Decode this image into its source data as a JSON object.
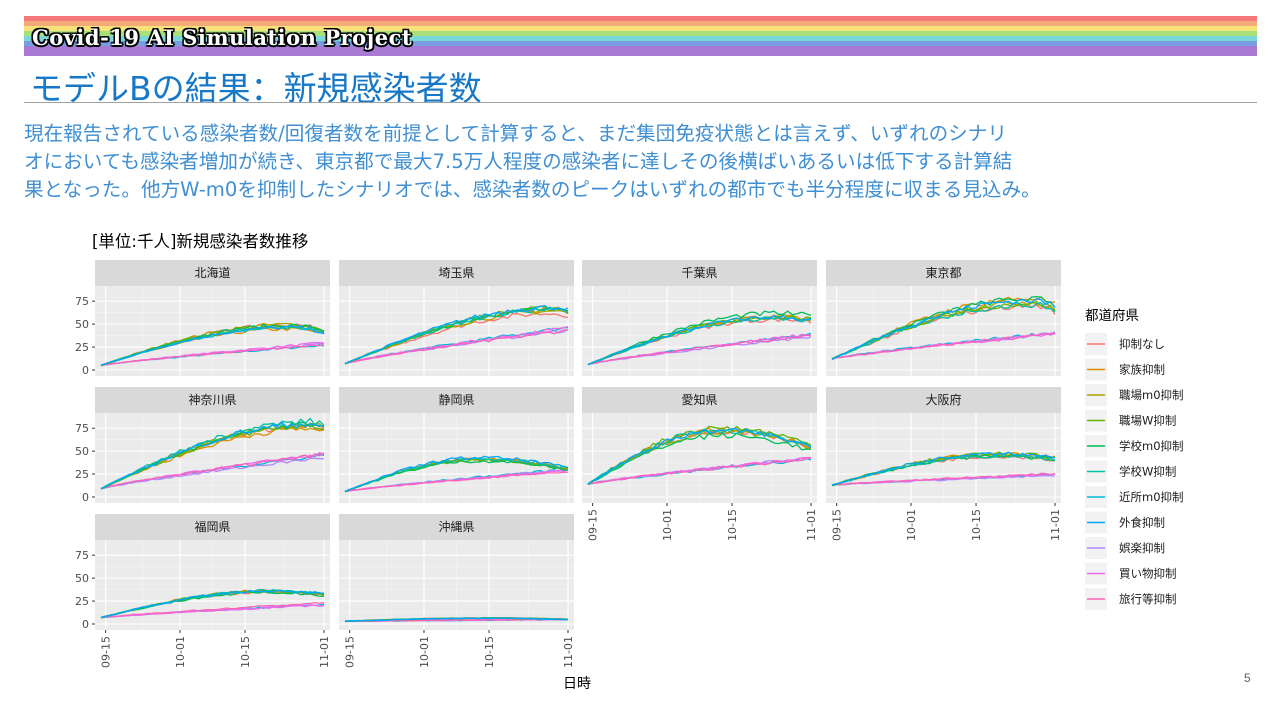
{
  "header": {
    "project_title": "Covid-19 AI Simulation Project",
    "rainbow_colors": [
      "#f4777a",
      "#f5aa7a",
      "#f6e279",
      "#a8e07a",
      "#7ad8d8",
      "#7a9ce0",
      "#a97ad4"
    ]
  },
  "slide": {
    "title": "モデルBの結果：新規感染者数",
    "summary_lines": [
      "現在報告されている感染者数/回復者数を前提として計算すると、まだ集団免疫状態とは言えず、いずれのシナリ",
      "オにおいても感染者増加が続き、東京都で最大7.5万人程度の感染者に達しその後横ばいあるいは低下する計算結",
      "果となった。他方W-m0を抑制したシナリオでは、感染者数のピークはいずれの都市でも半分程度に収まる見込み。"
    ],
    "page_number": "5"
  },
  "chart_data": {
    "type": "line",
    "title": "[単位:千人]新規感染者数推移",
    "xlabel": "日時",
    "ylabel": "",
    "x_tick_labels": [
      "09-15",
      "10-01",
      "10-15",
      "11-01"
    ],
    "y_tick_labels": [
      "0",
      "25",
      "50",
      "75"
    ],
    "ylim": [
      0,
      85
    ],
    "xlim": [
      "09-14",
      "11-02"
    ],
    "legend_title": "都道府県",
    "legend_placement": "right",
    "series": [
      {
        "name": "抑制なし",
        "color": "#f8766d",
        "group": "high"
      },
      {
        "name": "家族抑制",
        "color": "#db8e00",
        "group": "high"
      },
      {
        "name": "職場m0抑制",
        "color": "#aea200",
        "group": "high"
      },
      {
        "name": "職場W抑制",
        "color": "#64b200",
        "group": "high"
      },
      {
        "name": "学校m0抑制",
        "color": "#00bd5c",
        "group": "high"
      },
      {
        "name": "学校W抑制",
        "color": "#00c1a7",
        "group": "high"
      },
      {
        "name": "近所m0抑制",
        "color": "#00bade",
        "group": "low"
      },
      {
        "name": "外食抑制",
        "color": "#00a6ff",
        "group": "high"
      },
      {
        "name": "娯楽抑制",
        "color": "#b385ff",
        "group": "low"
      },
      {
        "name": "買い物抑制",
        "color": "#ef67eb",
        "group": "low"
      },
      {
        "name": "旅行等抑制",
        "color": "#ff63b6",
        "group": "low"
      }
    ],
    "panels": [
      {
        "name": "北海道",
        "start": 5,
        "high_end": 42,
        "high_peak": 48,
        "high_peak_at": 0.85,
        "low_end": 29
      },
      {
        "name": "埼玉県",
        "start": 7,
        "high_end": 63,
        "high_peak": 66,
        "high_peak_at": 0.95,
        "low_end": 45
      },
      {
        "name": "千葉県",
        "start": 6,
        "high_end": 56,
        "high_peak": 59,
        "high_peak_at": 0.85,
        "low_end": 38
      },
      {
        "name": "東京都",
        "start": 12,
        "high_end": 68,
        "high_peak": 75,
        "high_peak_at": 0.9,
        "low_end": 40
      },
      {
        "name": "神奈川県",
        "start": 9,
        "high_end": 76,
        "high_peak": 80,
        "high_peak_at": 0.95,
        "low_end": 46
      },
      {
        "name": "静岡県",
        "start": 6,
        "high_end": 31,
        "high_peak": 42,
        "high_peak_at": 0.6,
        "low_end": 29
      },
      {
        "name": "愛知県",
        "start": 14,
        "high_end": 54,
        "high_peak": 72,
        "high_peak_at": 0.6,
        "low_end": 42
      },
      {
        "name": "大阪府",
        "start": 13,
        "high_end": 43,
        "high_peak": 47,
        "high_peak_at": 0.75,
        "low_end": 25
      },
      {
        "name": "福岡県",
        "start": 7,
        "high_end": 33,
        "high_peak": 36,
        "high_peak_at": 0.75,
        "low_end": 22
      },
      {
        "name": "沖縄県",
        "start": 3,
        "high_end": 5,
        "high_peak": 6.5,
        "high_peak_at": 0.65,
        "low_end": 5
      }
    ]
  }
}
